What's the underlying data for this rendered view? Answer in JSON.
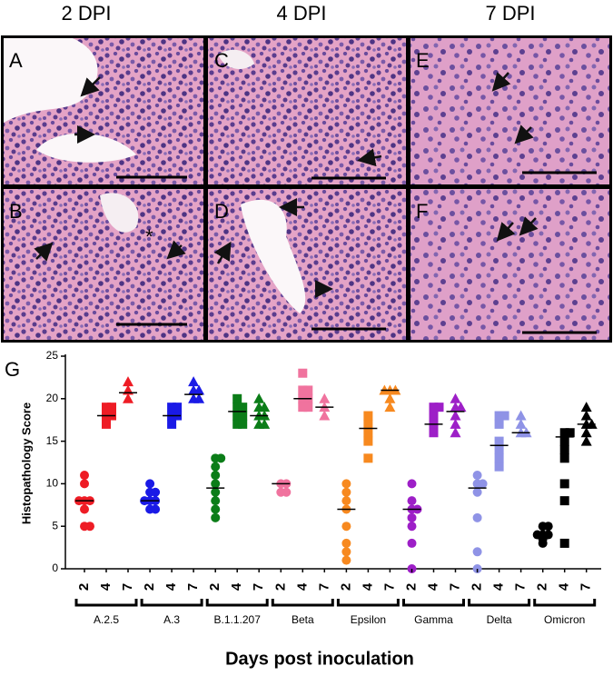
{
  "panels": {
    "headers": [
      "2 DPI",
      "4 DPI",
      "7 DPI"
    ],
    "letters": [
      "A",
      "C",
      "E",
      "B",
      "D",
      "F"
    ],
    "asterisk": "*"
  },
  "chart_data": {
    "type": "scatter",
    "panel_label": "G",
    "ylabel": "Histopathology  Score",
    "xlabel": "Days post  inoculation",
    "ylim": [
      0,
      25
    ],
    "yticks": [
      0,
      5,
      10,
      15,
      20,
      25
    ],
    "days": [
      "2",
      "4",
      "7"
    ],
    "markers": [
      "circle",
      "square",
      "triangle"
    ],
    "series": [
      {
        "name": "A.2.5",
        "color": "#ee1c25",
        "values": [
          [
            5,
            5,
            7,
            8,
            8,
            8,
            10,
            11
          ],
          [
            17,
            18,
            18,
            19,
            19
          ],
          [
            20,
            21,
            22
          ]
        ],
        "medians": [
          8,
          18,
          20.7
        ]
      },
      {
        "name": "A.3",
        "color": "#1a1ae6",
        "values": [
          [
            7,
            7,
            8,
            8,
            8,
            9,
            9,
            10
          ],
          [
            17,
            18,
            18,
            19,
            19
          ],
          [
            20,
            20,
            21,
            21,
            22
          ]
        ],
        "medians": [
          8,
          18,
          20.5
        ]
      },
      {
        "name": "B.1.1.207",
        "color": "#0b7d18",
        "values": [
          [
            6,
            7,
            8,
            9,
            10,
            11,
            12,
            13,
            13
          ],
          [
            17,
            17,
            18,
            18,
            19,
            19,
            20
          ],
          [
            17,
            17,
            18,
            18,
            19,
            19,
            20
          ]
        ],
        "medians": [
          9.5,
          18.5,
          18
        ]
      },
      {
        "name": "Beta",
        "color": "#f0739e",
        "values": [
          [
            9,
            9,
            10,
            10
          ],
          [
            19,
            19,
            20,
            20,
            21,
            21,
            23
          ],
          [
            18,
            19,
            20
          ]
        ],
        "medians": [
          10,
          20,
          19
        ]
      },
      {
        "name": "Epsilon",
        "color": "#f7891f",
        "values": [
          [
            1,
            2,
            3,
            5,
            7,
            8,
            9,
            10
          ],
          [
            13,
            15,
            16,
            17,
            18
          ],
          [
            19,
            20,
            21,
            21,
            21
          ]
        ],
        "medians": [
          7,
          16.5,
          21
        ]
      },
      {
        "name": "Gamma",
        "color": "#9d1fc7",
        "values": [
          [
            0,
            3,
            5,
            6,
            7,
            7,
            8,
            10
          ],
          [
            16,
            17,
            18,
            19,
            19
          ],
          [
            16,
            17,
            18,
            19,
            19,
            20
          ]
        ],
        "medians": [
          7,
          17,
          18.5
        ]
      },
      {
        "name": "Delta",
        "color": "#8f93e6",
        "values": [
          [
            0,
            2,
            6,
            9,
            10,
            10,
            11
          ],
          [
            12,
            13,
            14,
            15,
            17,
            18,
            18
          ],
          [
            16,
            16,
            17,
            18
          ]
        ],
        "medians": [
          9.5,
          14.5,
          16
        ]
      },
      {
        "name": "Omicron",
        "color": "#000000",
        "values": [
          [
            3,
            3.5,
            4,
            4,
            4,
            5,
            5
          ],
          [
            3,
            8,
            10,
            13,
            14,
            15,
            16,
            16
          ],
          [
            15,
            16,
            17,
            17,
            18,
            19
          ]
        ],
        "medians": [
          4,
          15.5,
          17
        ]
      }
    ]
  }
}
